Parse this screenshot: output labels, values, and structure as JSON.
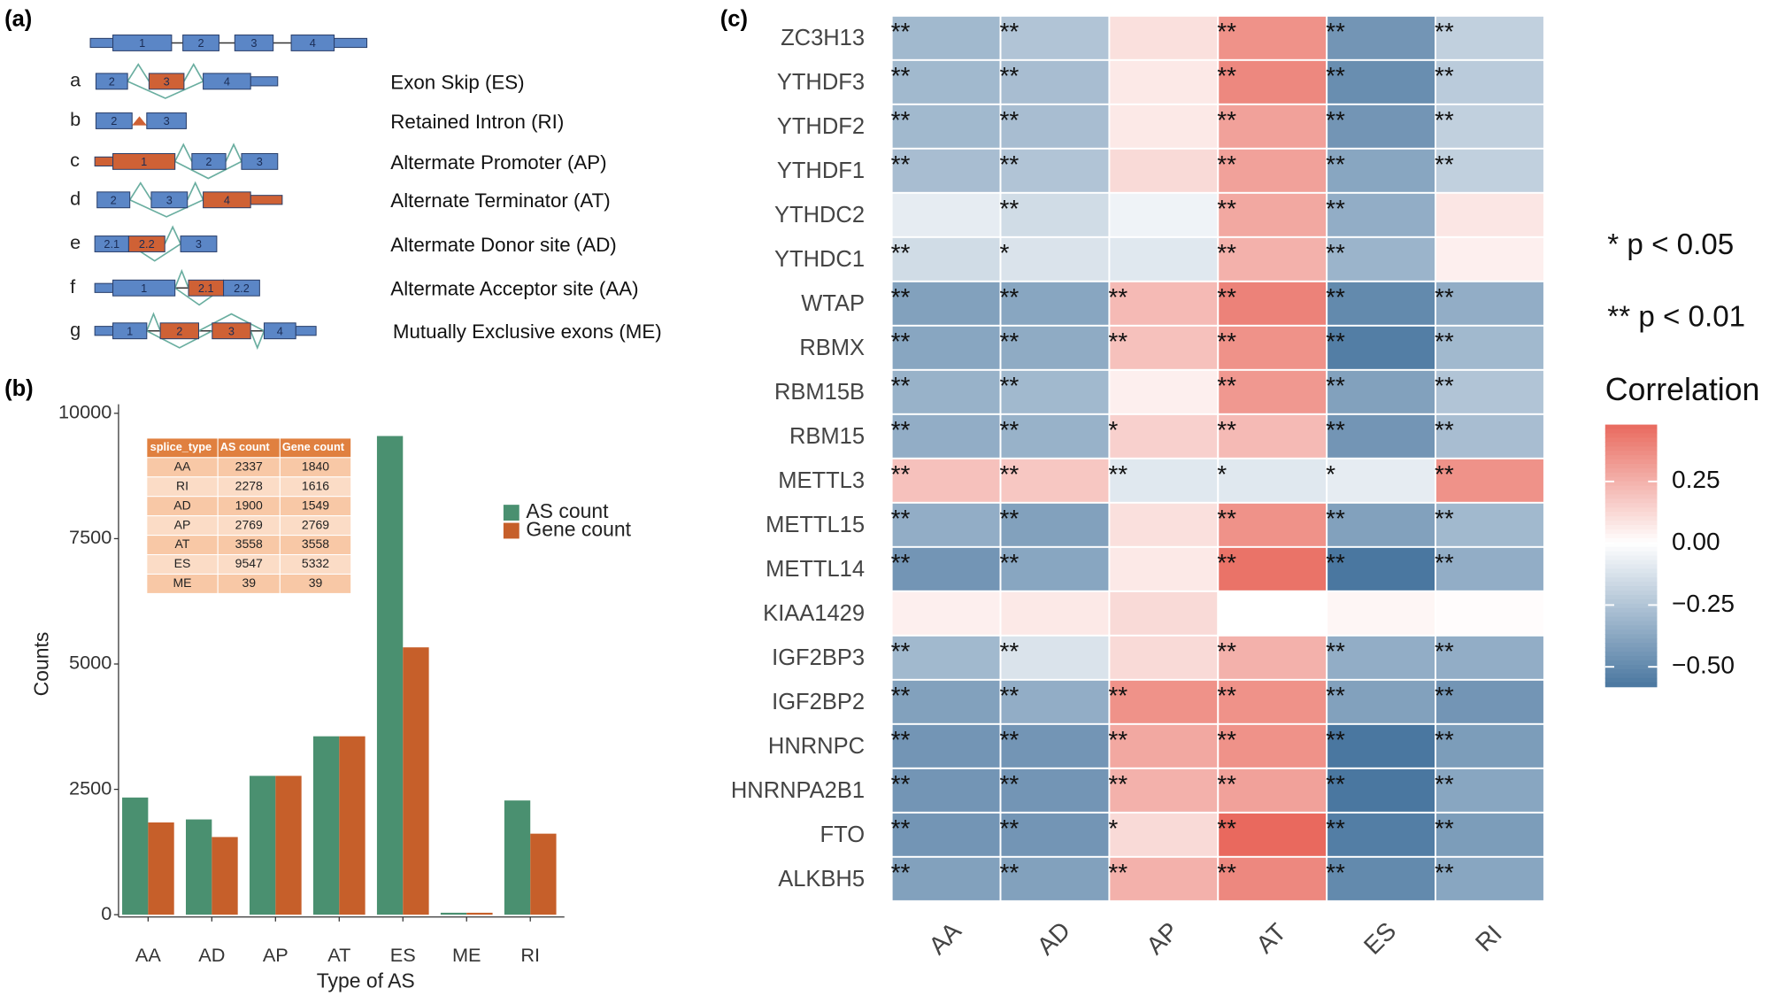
{
  "panels": [
    "(a)",
    "(b)",
    "(c)"
  ],
  "diagram": {
    "rows": [
      {
        "exons": [
          "1",
          "2",
          "3",
          "4"
        ]
      },
      {
        "letter": "a",
        "exons": [
          "2",
          "3",
          "4"
        ],
        "description": "Exon Skip (ES)"
      },
      {
        "letter": "b",
        "exons": [
          "2",
          "3"
        ],
        "description": "Retained Intron (RI)"
      },
      {
        "letter": "c",
        "exons": [
          "1",
          "2",
          "3"
        ],
        "description": "Altermate Promoter (AP)"
      },
      {
        "letter": "d",
        "exons": [
          "2",
          "3",
          "4"
        ],
        "description": "Alternate Terminator (AT)"
      },
      {
        "letter": "e",
        "exons": [
          "2.1",
          "2.2",
          "3"
        ],
        "description": "Altermate Donor site (AD)"
      },
      {
        "letter": "f",
        "exons": [
          "1",
          "2.1",
          "2.2"
        ],
        "description": "Altermate Acceptor site (AA)"
      },
      {
        "letter": "g",
        "exons": [
          "1",
          "2",
          "3",
          "4"
        ],
        "description": "Mutually Exclusive exons (ME)"
      }
    ]
  },
  "chart_data": [
    {
      "type": "bar",
      "xlabel": "Type of AS",
      "ylabel": "Counts",
      "categories": [
        "AA",
        "AD",
        "AP",
        "AT",
        "ES",
        "ME",
        "RI"
      ],
      "series": [
        {
          "name": "AS count",
          "color": "#4a9070",
          "values": [
            2337,
            1900,
            2769,
            3558,
            9547,
            39,
            2278
          ]
        },
        {
          "name": "Gene count",
          "color": "#c65f2a",
          "values": [
            1840,
            1549,
            2769,
            3558,
            5332,
            39,
            1616
          ]
        }
      ],
      "ylim": [
        0,
        10000
      ],
      "yticks": [
        0,
        2500,
        5000,
        7500,
        10000
      ],
      "table": {
        "columns": [
          "splice_type",
          "AS count",
          "Gene count"
        ],
        "rows": [
          [
            "AA",
            2337,
            1840
          ],
          [
            "RI",
            2278,
            1616
          ],
          [
            "AD",
            1900,
            1549
          ],
          [
            "AP",
            2769,
            2769
          ],
          [
            "AT",
            3558,
            3558
          ],
          [
            "ES",
            9547,
            5332
          ],
          [
            "ME",
            39,
            39
          ]
        ]
      }
    },
    {
      "type": "heatmap",
      "x_categories": [
        "AA",
        "AD",
        "AP",
        "AT",
        "ES",
        "RI"
      ],
      "y_categories": [
        "ZC3H13",
        "YTHDF3",
        "YTHDF2",
        "YTHDF1",
        "YTHDC2",
        "YTHDC1",
        "WTAP",
        "RBMX",
        "RBM15B",
        "RBM15",
        "METTL3",
        "METTL15",
        "METTL14",
        "KIAA1429",
        "IGF2BP3",
        "IGF2BP2",
        "HNRNPC",
        "HNRNPA2B1",
        "FTO",
        "ALKBH5"
      ],
      "values": [
        [
          -0.3,
          -0.25,
          0.1,
          0.35,
          -0.45,
          -0.2
        ],
        [
          -0.3,
          -0.28,
          0.07,
          0.38,
          -0.48,
          -0.22
        ],
        [
          -0.3,
          -0.28,
          0.07,
          0.3,
          -0.45,
          -0.2
        ],
        [
          -0.28,
          -0.25,
          0.12,
          0.3,
          -0.38,
          -0.2
        ],
        [
          -0.08,
          -0.15,
          -0.05,
          0.28,
          -0.35,
          0.08
        ],
        [
          -0.15,
          -0.12,
          -0.1,
          0.25,
          -0.32,
          0.05
        ],
        [
          -0.4,
          -0.38,
          0.22,
          0.4,
          -0.5,
          -0.35
        ],
        [
          -0.38,
          -0.36,
          0.2,
          0.35,
          -0.55,
          -0.3
        ],
        [
          -0.33,
          -0.3,
          0.05,
          0.33,
          -0.4,
          -0.25
        ],
        [
          -0.35,
          -0.33,
          0.15,
          0.22,
          -0.45,
          -0.28
        ],
        [
          0.2,
          0.18,
          -0.1,
          -0.1,
          -0.08,
          0.35
        ],
        [
          -0.35,
          -0.4,
          0.1,
          0.35,
          -0.4,
          -0.3
        ],
        [
          -0.45,
          -0.38,
          0.07,
          0.45,
          -0.6,
          -0.35
        ],
        [
          0.05,
          0.07,
          0.12,
          0.0,
          0.03,
          0.01
        ],
        [
          -0.3,
          -0.12,
          0.12,
          0.25,
          -0.35,
          -0.35
        ],
        [
          -0.4,
          -0.35,
          0.35,
          0.35,
          -0.4,
          -0.45
        ],
        [
          -0.45,
          -0.45,
          0.28,
          0.35,
          -0.58,
          -0.42
        ],
        [
          -0.45,
          -0.45,
          0.25,
          0.3,
          -0.6,
          -0.38
        ],
        [
          -0.45,
          -0.45,
          0.12,
          0.48,
          -0.55,
          -0.42
        ],
        [
          -0.4,
          -0.4,
          0.25,
          0.38,
          -0.5,
          -0.38
        ]
      ],
      "annotations": [
        [
          "**",
          "**",
          null,
          "**",
          "**",
          "**"
        ],
        [
          "**",
          "**",
          null,
          "**",
          "**",
          "**"
        ],
        [
          "**",
          "**",
          null,
          "**",
          "**",
          "**"
        ],
        [
          "**",
          "**",
          null,
          "**",
          "**",
          "**"
        ],
        [
          null,
          "**",
          null,
          "**",
          "**",
          null
        ],
        [
          "**",
          "*",
          null,
          "**",
          "**",
          null
        ],
        [
          "**",
          "**",
          "**",
          "**",
          "**",
          "**"
        ],
        [
          "**",
          "**",
          "**",
          "**",
          "**",
          "**"
        ],
        [
          "**",
          "**",
          null,
          "**",
          "**",
          "**"
        ],
        [
          "**",
          "**",
          "*",
          "**",
          "**",
          "**"
        ],
        [
          "**",
          "**",
          "**",
          "*",
          "*",
          "**"
        ],
        [
          "**",
          "**",
          null,
          "**",
          "**",
          "**"
        ],
        [
          "**",
          "**",
          null,
          "**",
          "**",
          "**"
        ],
        [
          null,
          null,
          null,
          null,
          null,
          null
        ],
        [
          "**",
          "**",
          null,
          "**",
          "**",
          "**"
        ],
        [
          "**",
          "**",
          "**",
          "**",
          "**",
          "**"
        ],
        [
          "**",
          "**",
          "**",
          "**",
          "**",
          "**"
        ],
        [
          "**",
          "**",
          "**",
          "**",
          "**",
          "**"
        ],
        [
          "**",
          "**",
          "*",
          "**",
          "**",
          "**"
        ],
        [
          "**",
          "**",
          "**",
          "**",
          "**",
          "**"
        ]
      ],
      "significance_legend": [
        "* p < 0.05",
        "** p < 0.01"
      ],
      "colorbar_title": "Correlation",
      "zlim": [
        -0.58,
        0.48
      ],
      "zticks": [
        0.25,
        {
          "value": 0,
          "label": "0.00"
        },
        {
          "value": -0.25,
          "label": "−0.25"
        },
        {
          "value": -0.5,
          "label": "−0.50"
        }
      ],
      "low_color": "#4a77a0",
      "mid_color": "#ffffff",
      "high_color": "#e44a3c"
    }
  ]
}
